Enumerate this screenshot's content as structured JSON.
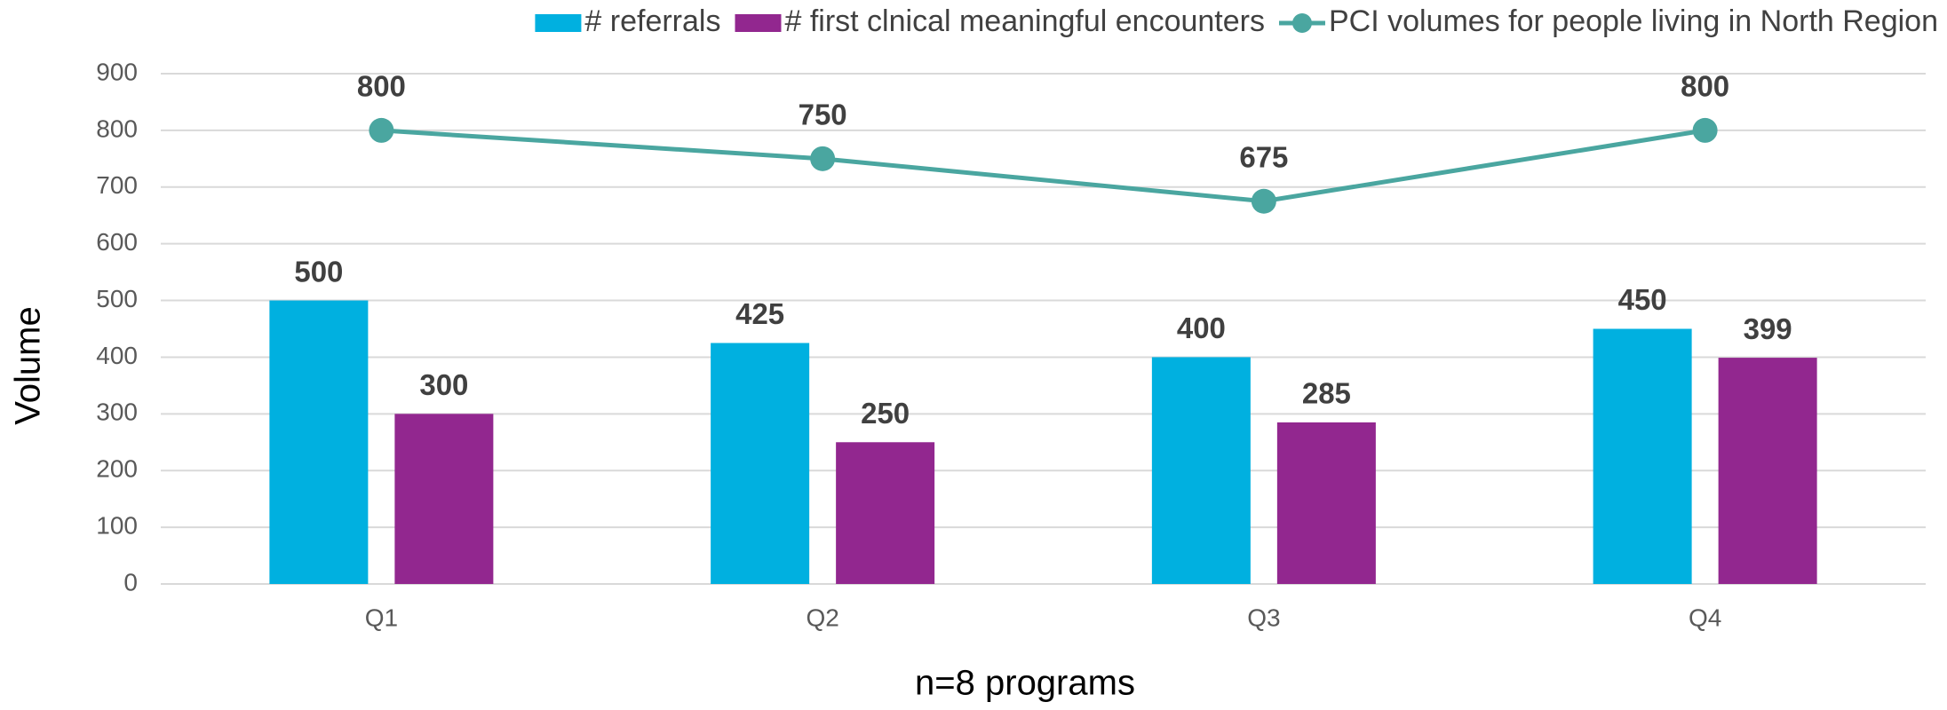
{
  "chart_data": {
    "type": "bar",
    "x_label": "n=8 programs",
    "y_label": "Volume",
    "categories": [
      "Q1",
      "Q2",
      "Q3",
      "Q4"
    ],
    "series": [
      {
        "name": "# referrals",
        "type": "bar",
        "color": "#00b0e0",
        "values": [
          500,
          425,
          400,
          450
        ]
      },
      {
        "name": "# first clnical meaningful encounters",
        "type": "bar",
        "color": "#92278f",
        "values": [
          300,
          250,
          285,
          399
        ]
      },
      {
        "name": "PCI volumes for people living in North Region",
        "type": "line",
        "color": "#4aa6a0",
        "values": [
          800,
          750,
          675,
          800
        ]
      }
    ],
    "ylim": [
      0,
      900
    ],
    "yticks": [
      0,
      100,
      200,
      300,
      400,
      500,
      600,
      700,
      800,
      900
    ],
    "grid": true,
    "legend": "top"
  }
}
